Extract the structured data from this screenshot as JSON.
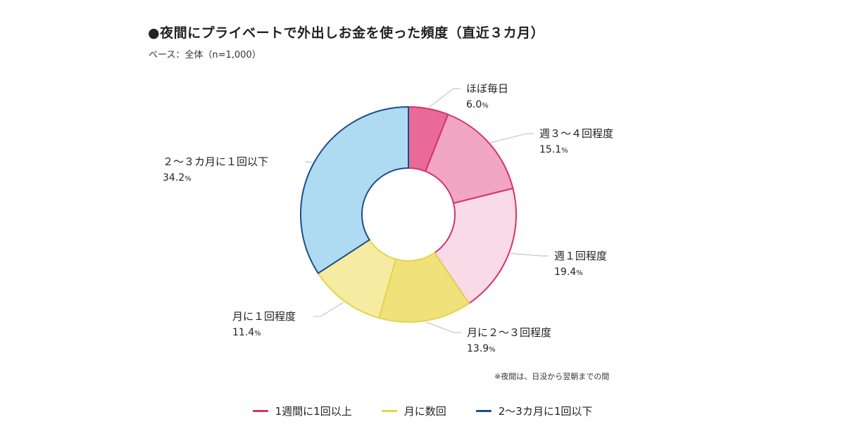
{
  "title": "●夜間にプライベートで外出しお金を使った頻度（直近３カ月）",
  "subtitle": "ベース：全体（n=1,000）",
  "note": "※夜間は、日没から翌朝までの間",
  "legend": [
    {
      "label": "1週間に1回以上",
      "color": "#d6336c"
    },
    {
      "label": "月に数回",
      "color": "#e6d24a"
    },
    {
      "label": "2〜3カ月に1回以下",
      "color": "#1a4d8c"
    }
  ],
  "chart_data": {
    "type": "pie",
    "donut": true,
    "unit": "%",
    "slices": [
      {
        "label": "ほぼ毎日",
        "value": 6.0,
        "value_text": "6.0",
        "fill": "#ea6a97",
        "stroke": "#d6336c",
        "group": "1週間に1回以上"
      },
      {
        "label": "週３〜４回程度",
        "value": 15.1,
        "value_text": "15.1",
        "fill": "#f1a6c3",
        "stroke": "#d6336c",
        "group": "1週間に1回以上"
      },
      {
        "label": "週１回程度",
        "value": 19.4,
        "value_text": "19.4",
        "fill": "#f9dbe7",
        "stroke": "#d6336c",
        "group": "1週間に1回以上"
      },
      {
        "label": "月に２〜３回程度",
        "value": 13.9,
        "value_text": "13.9",
        "fill": "#efe27a",
        "stroke": "#e6d24a",
        "group": "月に数回"
      },
      {
        "label": "月に１回程度",
        "value": 11.4,
        "value_text": "11.4",
        "fill": "#f5eca2",
        "stroke": "#e6d24a",
        "group": "月に数回"
      },
      {
        "label": "２〜３カ月に１回以下",
        "value": 34.2,
        "value_text": "34.2",
        "fill": "#aedaf2",
        "stroke": "#1a4d8c",
        "group": "2〜3カ月に1回以下"
      }
    ]
  }
}
